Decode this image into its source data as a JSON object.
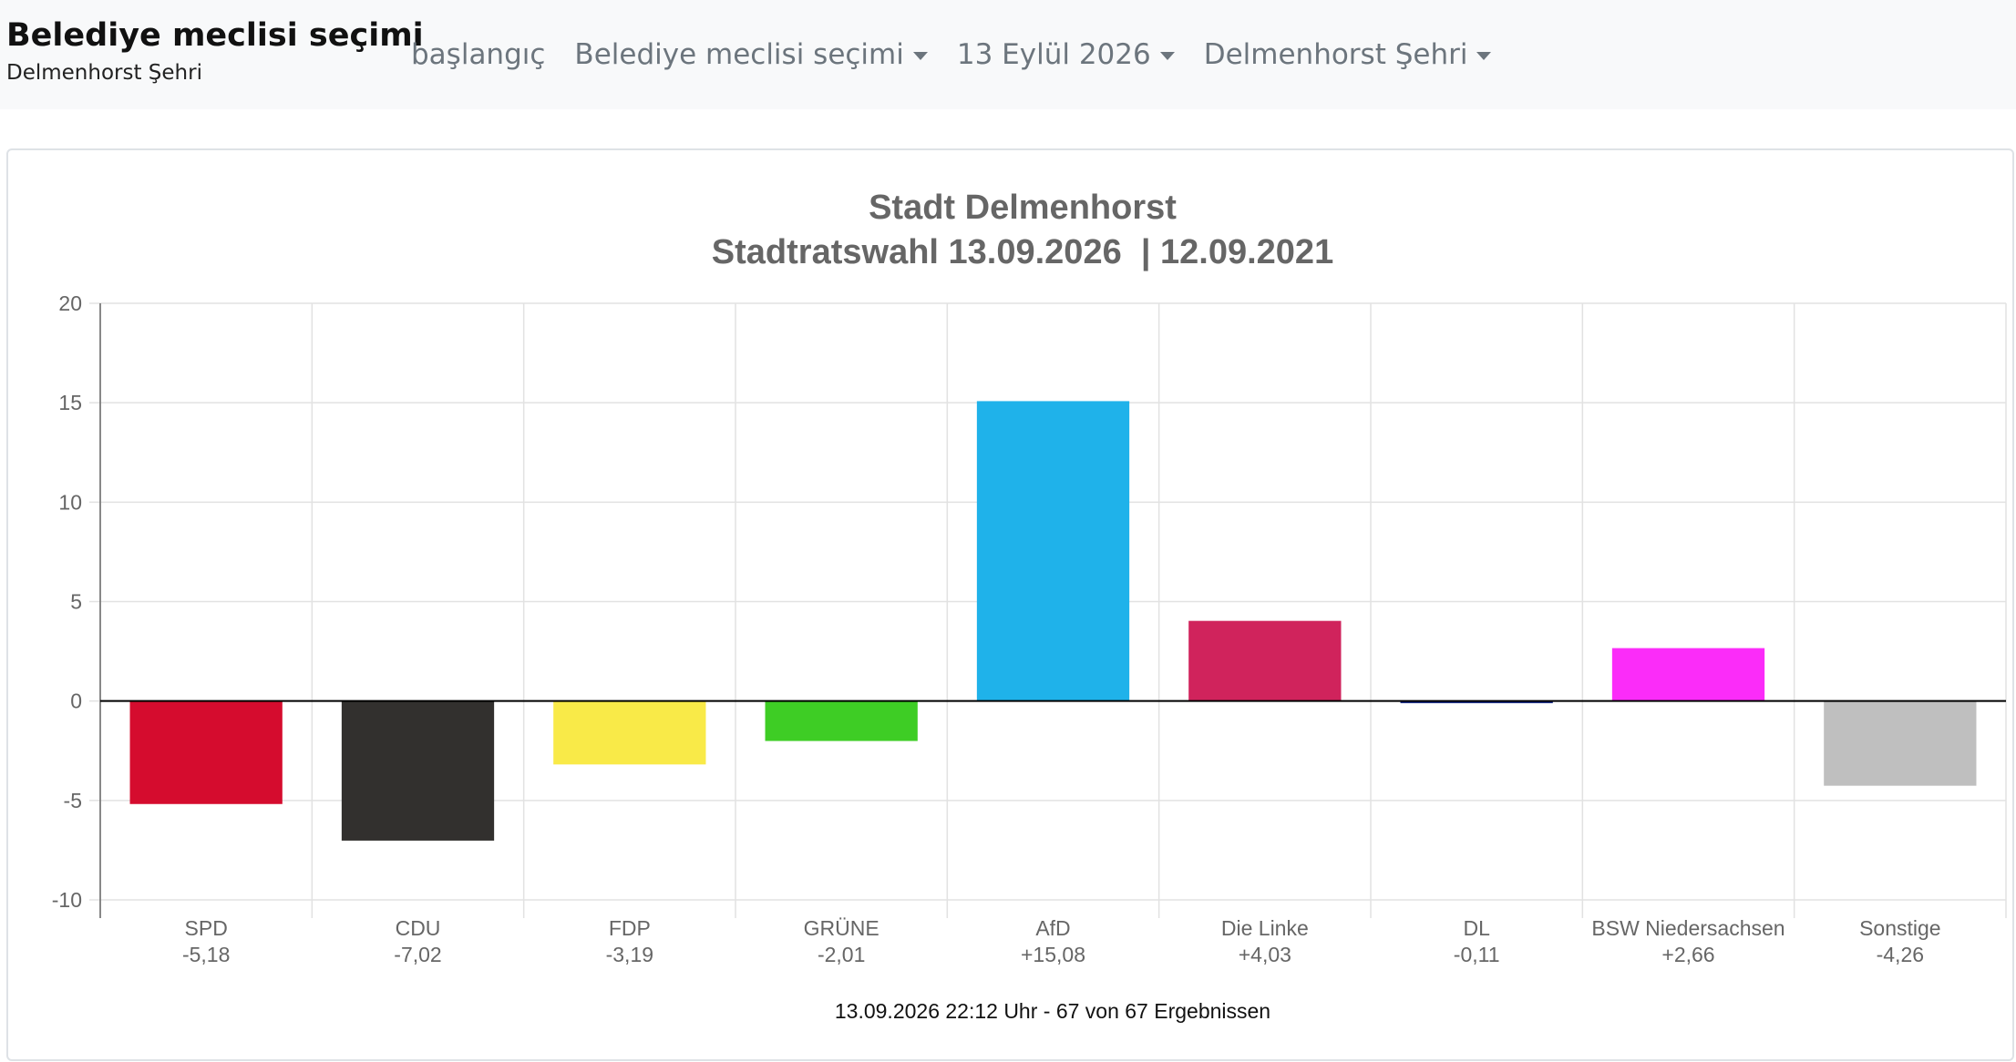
{
  "header": {
    "title": "Belediye meclisi seçimi",
    "subtitle": "Delmenhorst Şehri"
  },
  "nav": {
    "home": "başlangıç",
    "election": "Belediye meclisi seçimi",
    "date": "13 Eylül 2026",
    "area": "Delmenhorst Şehri"
  },
  "chart_data": {
    "type": "bar",
    "title": "Stadt Delmenhorst",
    "subtitle": "Stadtratswahl 13.09.2026  | 12.09.2021",
    "categories": [
      "SPD",
      "CDU",
      "FDP",
      "GRÜNE",
      "AfD",
      "Die Linke",
      "DL",
      "BSW Niedersachsen",
      "Sonstige"
    ],
    "value_labels": [
      "-5,18",
      "-7,02",
      "-3,19",
      "-2,01",
      "+15,08",
      "+4,03",
      "-0,11",
      "+2,66",
      "-4,26"
    ],
    "values": [
      -5.18,
      -7.02,
      -3.19,
      -2.01,
      15.08,
      4.03,
      -0.11,
      2.66,
      -4.26
    ],
    "colors": [
      "#d50c2e",
      "#32302e",
      "#f9ea48",
      "#3ecd25",
      "#1fb2ea",
      "#d0235c",
      "#1a2e88",
      "#fb2cf9",
      "#bfbfbf"
    ],
    "ylim": [
      -10,
      20
    ],
    "yticks": [
      20,
      15,
      10,
      5,
      0,
      -5,
      -10
    ],
    "grid": true,
    "legend": "none",
    "footnote": "13.09.2026 22:12 Uhr - 67 von 67 Ergebnissen"
  }
}
